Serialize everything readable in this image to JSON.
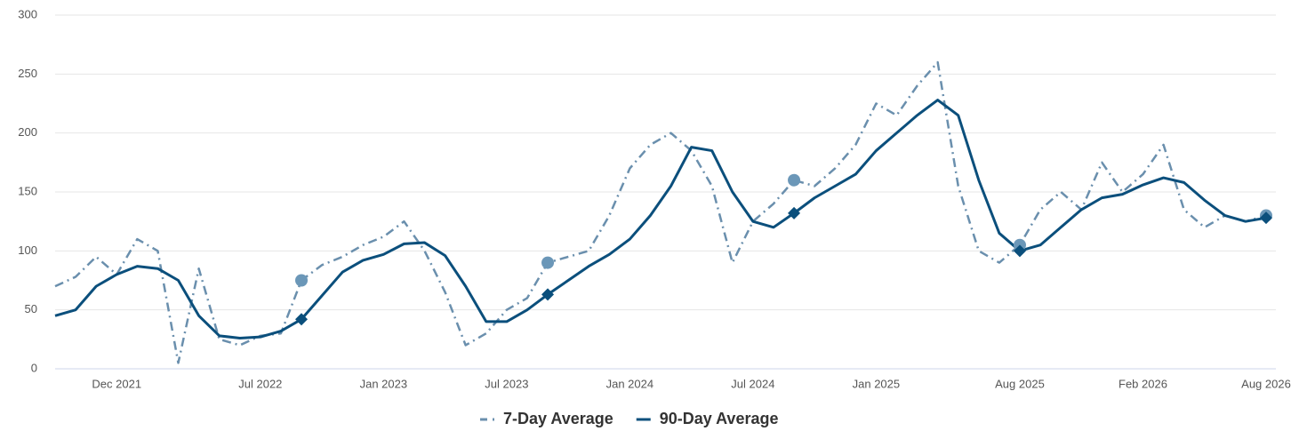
{
  "chart_data": {
    "type": "line",
    "categories": [
      null,
      null,
      null,
      "Dec 2021",
      null,
      null,
      null,
      null,
      null,
      null,
      "Jul 2022",
      null,
      null,
      null,
      null,
      null,
      "Jan 2023",
      null,
      null,
      null,
      null,
      null,
      "Jul 2023",
      null,
      null,
      null,
      null,
      null,
      "Jan 2024",
      null,
      null,
      null,
      null,
      null,
      "Jul 2024",
      null,
      null,
      null,
      null,
      null,
      "Jan 2025",
      null,
      null,
      null,
      null,
      null,
      null,
      "Aug 2025",
      null,
      null,
      null,
      null,
      null,
      "Feb 2026",
      null,
      null,
      null,
      null,
      null,
      "Aug 2026"
    ],
    "series": [
      {
        "name": "7-Day Average",
        "color": "#6a8fad",
        "dash": true,
        "marker": "circle",
        "marker_color": "#6b97b8",
        "marker_at": [
          12,
          24,
          36,
          47,
          59
        ],
        "values": [
          70,
          78,
          95,
          80,
          110,
          100,
          5,
          85,
          25,
          20,
          28,
          30,
          75,
          88,
          95,
          105,
          112,
          125,
          100,
          65,
          20,
          30,
          50,
          60,
          90,
          95,
          100,
          130,
          170,
          190,
          200,
          185,
          155,
          90,
          125,
          140,
          160,
          155,
          170,
          190,
          225,
          215,
          240,
          260,
          155,
          100,
          90,
          105,
          135,
          150,
          135,
          175,
          150,
          165,
          190,
          135,
          120,
          130,
          125,
          130
        ]
      },
      {
        "name": "90-Day Average",
        "color": "#0b4f7c",
        "dash": false,
        "marker": "diamond",
        "marker_color": "#0b4f7c",
        "marker_at": [
          12,
          24,
          36,
          47,
          59
        ],
        "values": [
          45,
          50,
          70,
          80,
          87,
          85,
          75,
          45,
          28,
          26,
          27,
          32,
          42,
          62,
          82,
          92,
          97,
          106,
          107,
          96,
          70,
          40,
          40,
          50,
          63,
          75,
          87,
          97,
          110,
          130,
          155,
          188,
          185,
          150,
          125,
          120,
          132,
          145,
          155,
          165,
          185,
          200,
          215,
          228,
          215,
          160,
          115,
          100,
          105,
          120,
          135,
          145,
          148,
          156,
          162,
          158,
          143,
          130,
          125,
          128
        ]
      }
    ],
    "ylim": [
      0,
      300
    ],
    "yticks": [
      0,
      50,
      100,
      150,
      200,
      250,
      300
    ],
    "grid": true,
    "legend": "bottom"
  }
}
